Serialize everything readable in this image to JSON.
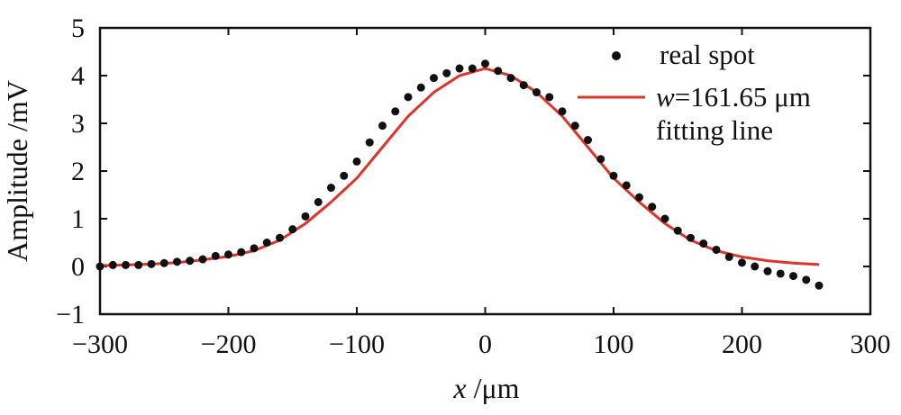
{
  "chart_data": {
    "type": "scatter",
    "xlabel": {
      "var": "x",
      "unit": " /μm"
    },
    "ylabel": "Amplitude /mV",
    "xlim": [
      -300,
      300
    ],
    "ylim": [
      -1,
      5
    ],
    "xticks": [
      -300,
      -200,
      -100,
      0,
      100,
      200,
      300
    ],
    "yticks": [
      -1,
      0,
      1,
      2,
      3,
      4,
      5
    ],
    "xtick_labels": [
      "−300",
      "−200",
      "−100",
      "0",
      "100",
      "200",
      "300"
    ],
    "ytick_labels": [
      "−1",
      "0",
      "1",
      "2",
      "3",
      "4",
      "5"
    ],
    "grid": false,
    "legend_position": "top-right",
    "series": [
      {
        "name": "real spot",
        "kind": "scatter",
        "color": "#111111",
        "x": [
          -300,
          -290,
          -280,
          -270,
          -260,
          -250,
          -240,
          -230,
          -220,
          -210,
          -200,
          -190,
          -180,
          -170,
          -160,
          -150,
          -140,
          -130,
          -120,
          -110,
          -100,
          -90,
          -80,
          -70,
          -60,
          -50,
          -40,
          -30,
          -20,
          -10,
          0,
          10,
          20,
          30,
          40,
          50,
          60,
          70,
          80,
          90,
          100,
          110,
          120,
          130,
          140,
          150,
          160,
          170,
          180,
          190,
          200,
          210,
          220,
          230,
          240,
          250,
          260
        ],
        "y": [
          0.0,
          0.03,
          0.03,
          0.03,
          0.05,
          0.07,
          0.1,
          0.12,
          0.15,
          0.22,
          0.25,
          0.3,
          0.38,
          0.5,
          0.6,
          0.78,
          1.05,
          1.35,
          1.65,
          1.9,
          2.2,
          2.6,
          2.95,
          3.25,
          3.55,
          3.75,
          3.95,
          4.05,
          4.15,
          4.15,
          4.25,
          4.1,
          3.95,
          3.8,
          3.65,
          3.55,
          3.25,
          2.95,
          2.65,
          2.25,
          1.9,
          1.7,
          1.45,
          1.25,
          1.0,
          0.75,
          0.6,
          0.48,
          0.35,
          0.2,
          0.08,
          0.0,
          -0.1,
          -0.15,
          -0.2,
          -0.28,
          -0.4
        ]
      },
      {
        "name": "fitting line",
        "kind": "line",
        "color": "#e0342a",
        "x": [
          -300,
          -280,
          -260,
          -240,
          -220,
          -200,
          -180,
          -160,
          -140,
          -120,
          -100,
          -80,
          -60,
          -40,
          -20,
          0,
          20,
          40,
          60,
          80,
          100,
          120,
          140,
          160,
          180,
          200,
          220,
          240,
          260
        ],
        "y": [
          0.02,
          0.03,
          0.05,
          0.08,
          0.14,
          0.21,
          0.33,
          0.55,
          0.9,
          1.35,
          1.85,
          2.5,
          3.15,
          3.65,
          4.0,
          4.15,
          4.0,
          3.65,
          3.15,
          2.5,
          1.85,
          1.35,
          0.9,
          0.55,
          0.33,
          0.2,
          0.12,
          0.07,
          0.04
        ]
      }
    ],
    "legend": [
      {
        "label": "real spot",
        "marker": "dot"
      },
      {
        "label_w": "w",
        "label_value": "=161.65 μm",
        "label_line2": "fitting line",
        "marker": "line"
      }
    ]
  }
}
